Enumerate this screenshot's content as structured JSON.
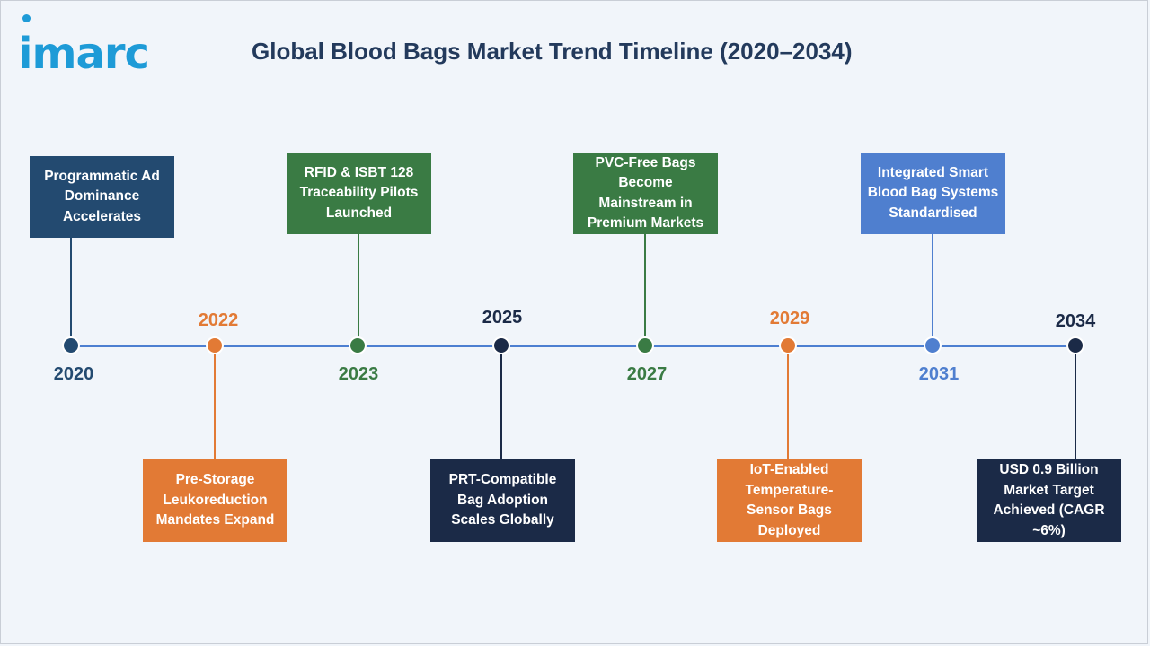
{
  "logo": {
    "text": "imarc"
  },
  "title": "Global Blood Bags Market Trend Timeline (2020–2034)",
  "colors": {
    "dark_blue": "#234a70",
    "orange": "#e27a35",
    "green": "#3a7b44",
    "navy": "#1b2a47",
    "light_blue": "#4f7fcf",
    "axis": "#4d7fd1"
  },
  "milestones": [
    {
      "year": "2020",
      "text": "Programmatic Ad Dominance Accelerates"
    },
    {
      "year": "2022",
      "text": "Pre-Storage Leukoreduction Mandates Expand"
    },
    {
      "year": "2023",
      "text": "RFID & ISBT 128 Traceability Pilots Launched"
    },
    {
      "year": "2025",
      "text": "PRT-Compatible Bag Adoption Scales Globally"
    },
    {
      "year": "2027",
      "text": "PVC-Free Bags Become Mainstream in Premium Markets"
    },
    {
      "year": "2029",
      "text": "IoT-Enabled Temperature-Sensor Bags Deployed"
    },
    {
      "year": "2031",
      "text": "Integrated Smart Blood Bag Systems Standardised"
    },
    {
      "year": "2034",
      "text": "USD 0.9 Billion Market Target Achieved (CAGR ~6%)"
    }
  ]
}
